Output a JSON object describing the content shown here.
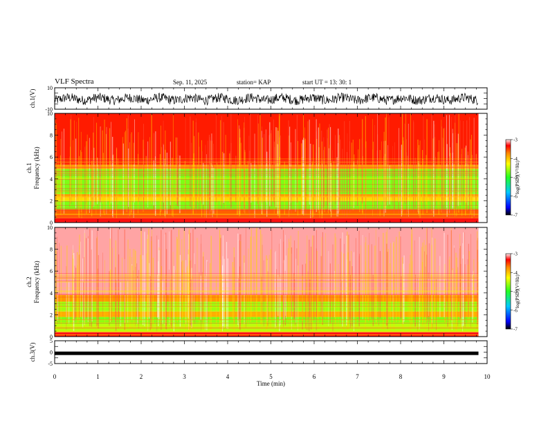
{
  "header": {
    "title": "VLF Spectra",
    "date": "Sep. 11, 2025",
    "station": "station= KAP",
    "start": "start  UT  =   13: 30: 1"
  },
  "chart_data": [
    {
      "type": "line",
      "title": "ch.1 waveform",
      "ylabel": "ch.1(V)",
      "ylim": [
        -10,
        10
      ],
      "yticks": [
        "10",
        "-10"
      ],
      "xlim": [
        0,
        10
      ],
      "x_extent_min": 9.8,
      "amplitude_description": "noise, approx. -5..+3 V"
    },
    {
      "type": "heatmap",
      "title": "ch.1 spectrogram",
      "ylabel": "ch.1\nFrequency  (kHz)",
      "ylim": [
        0,
        10
      ],
      "yticks": [
        "0",
        "2",
        "4",
        "6",
        "8",
        "10"
      ],
      "xlim": [
        0,
        10
      ],
      "bands": [
        {
          "from": 0.0,
          "to": 0.4,
          "level": -3.3
        },
        {
          "from": 0.4,
          "to": 1.2,
          "level": -3.6
        },
        {
          "from": 1.2,
          "to": 2.0,
          "level": -4.7
        },
        {
          "from": 2.0,
          "to": 2.3,
          "level": -4.1
        },
        {
          "from": 2.3,
          "to": 2.6,
          "level": -3.8
        },
        {
          "from": 2.6,
          "to": 4.9,
          "level": -4.7
        },
        {
          "from": 4.9,
          "to": 5.3,
          "level": -3.8
        },
        {
          "from": 5.3,
          "to": 10.0,
          "level": -3.4
        }
      ],
      "colorbar": {
        "label": "log(PSD)(V²/Hz)",
        "ticks": [
          "-3",
          "-4",
          "-5",
          "-6",
          "-7"
        ],
        "range": [
          -7,
          -3
        ]
      }
    },
    {
      "type": "heatmap",
      "title": "ch.2 spectrogram",
      "ylabel": "ch.2\nFrequency  (kHz)",
      "ylim": [
        0,
        10
      ],
      "yticks": [
        "0",
        "2",
        "4",
        "6",
        "8",
        "10"
      ],
      "xlim": [
        0,
        10
      ],
      "bands": [
        {
          "from": 0.0,
          "to": 0.4,
          "level": -3.3
        },
        {
          "from": 0.4,
          "to": 1.2,
          "level": -4.5
        },
        {
          "from": 1.2,
          "to": 1.8,
          "level": -4.7
        },
        {
          "from": 1.8,
          "to": 2.3,
          "level": -3.9
        },
        {
          "from": 2.3,
          "to": 3.2,
          "level": -4.6
        },
        {
          "from": 3.2,
          "to": 3.8,
          "level": -3.8
        },
        {
          "from": 3.8,
          "to": 10.0,
          "level": -3.1
        }
      ],
      "colorbar": {
        "label": "log(PSD)(V²/Hz)",
        "ticks": [
          "-3",
          "-4",
          "-5",
          "-6",
          "-7"
        ],
        "range": [
          -7,
          -3
        ]
      }
    },
    {
      "type": "line",
      "title": "ch.3 waveform",
      "ylabel": "ch.3(V)",
      "ylim": [
        -5,
        5
      ],
      "yticks": [
        "5",
        "0",
        "-5"
      ],
      "xlim": [
        0,
        10
      ],
      "x_extent_min": 9.8,
      "level": -0.5,
      "xlabel": "Time  (min)",
      "xticks": [
        "0",
        "1",
        "2",
        "3",
        "4",
        "5",
        "6",
        "7",
        "8",
        "9",
        "10"
      ]
    }
  ]
}
